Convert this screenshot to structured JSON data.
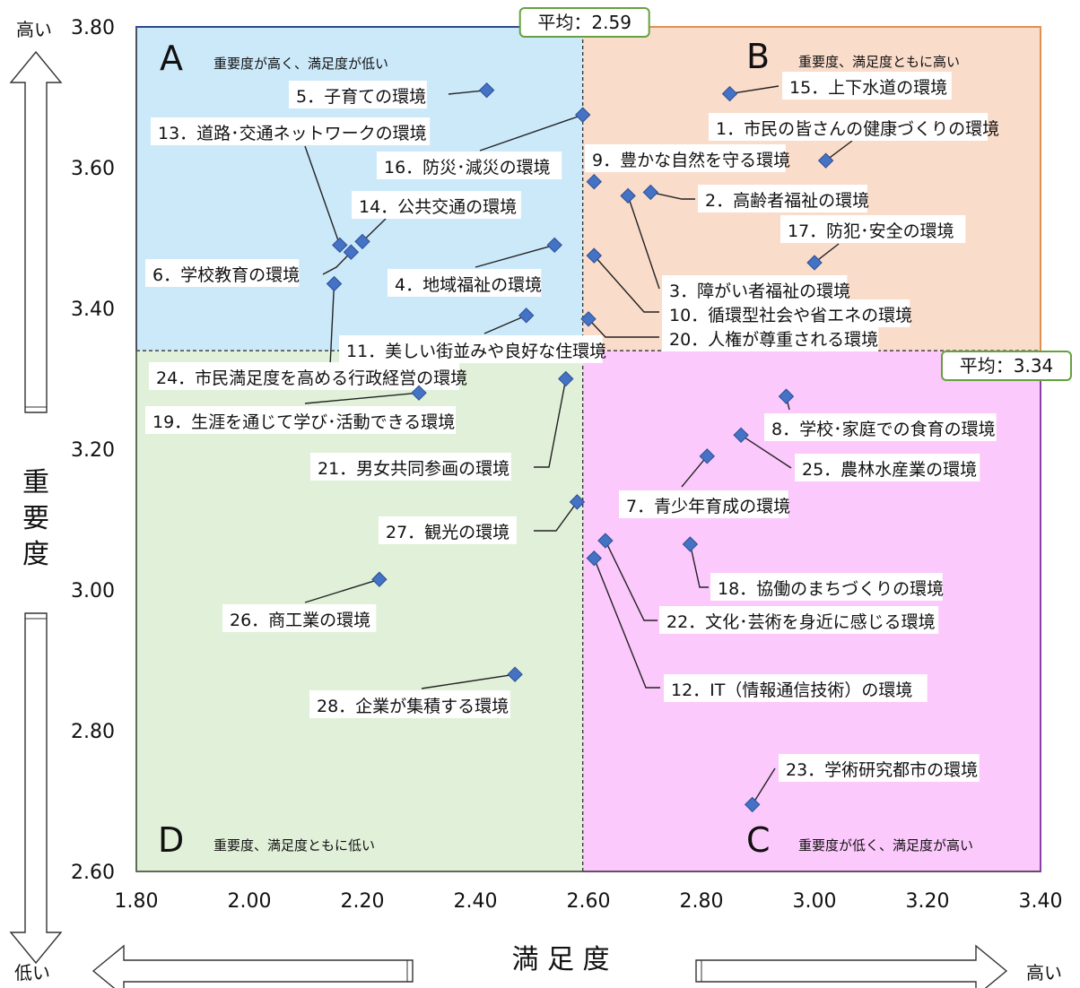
{
  "chart_data": {
    "type": "scatter",
    "x_axis": {
      "label": "満 足 度",
      "min": 1.8,
      "max": 3.4,
      "ticks": [
        "1.80",
        "2.00",
        "2.20",
        "2.40",
        "2.60",
        "2.80",
        "3.00",
        "3.20",
        "3.40"
      ],
      "low_label": "低い",
      "high_label": "高い"
    },
    "y_axis": {
      "label": [
        "重",
        "要",
        "度"
      ],
      "min": 2.6,
      "max": 3.8,
      "ticks": [
        "2.60",
        "2.80",
        "3.00",
        "3.20",
        "3.40",
        "3.60",
        "3.80"
      ],
      "low_label": "低い",
      "high_label": "高い"
    },
    "averages": {
      "x": 2.59,
      "x_label": "平均：2.59",
      "y": 3.34,
      "y_label": "平均：3.34"
    },
    "quadrants": [
      {
        "id": "A",
        "letter": "A",
        "desc": "重要度が高く、満足度が低い",
        "color": "#cce9fa",
        "border": "#2b4a8c"
      },
      {
        "id": "B",
        "letter": "B",
        "desc": "重要度、満足度ともに高い",
        "color": "#fadccb",
        "border": "#e09050"
      },
      {
        "id": "C",
        "letter": "C",
        "desc": "重要度が低く、満足度が高い",
        "color": "#fcc9fc",
        "border": "#8a3fa8"
      },
      {
        "id": "D",
        "letter": "D",
        "desc": "重要度、満足度ともに低い",
        "color": "#e1f0d9",
        "border": "#7ab55c"
      }
    ],
    "marker_color": "#4472c4",
    "points": [
      {
        "label": "1．市民の皆さんの健康づくりの環境",
        "x": 3.02,
        "y": 3.61
      },
      {
        "label": "2．高齢者福祉の環境",
        "x": 2.71,
        "y": 3.565
      },
      {
        "label": "3．障がい者福祉の環境",
        "x": 2.61,
        "y": 3.58
      },
      {
        "label": "4．地域福祉の環境",
        "x": 2.54,
        "y": 3.49
      },
      {
        "label": "5．子育ての環境",
        "x": 2.42,
        "y": 3.71
      },
      {
        "label": "6．学校教育の環境",
        "x": 2.18,
        "y": 3.48
      },
      {
        "label": "7．青少年育成の環境",
        "x": 2.81,
        "y": 3.19
      },
      {
        "label": "8．学校･家庭での食育の環境",
        "x": 2.95,
        "y": 3.275
      },
      {
        "label": "9．豊かな自然を守る環境",
        "x": 2.67,
        "y": 3.56
      },
      {
        "label": "10．循環型社会や省エネの環境",
        "x": 2.61,
        "y": 3.475
      },
      {
        "label": "11．美しい街並みや良好な住環境",
        "x": 2.49,
        "y": 3.39
      },
      {
        "label": "12．IT（情報通信技術）の環境",
        "x": 2.61,
        "y": 3.045
      },
      {
        "label": "13．道路･交通ネットワークの環境",
        "x": 2.16,
        "y": 3.49
      },
      {
        "label": "14．公共交通の環境",
        "x": 2.2,
        "y": 3.495
      },
      {
        "label": "15．上下水道の環境",
        "x": 2.85,
        "y": 3.705
      },
      {
        "label": "16．防災･減災の環境",
        "x": 2.59,
        "y": 3.675
      },
      {
        "label": "17．防犯･安全の環境",
        "x": 3.0,
        "y": 3.465
      },
      {
        "label": "18．協働のまちづくりの環境",
        "x": 2.78,
        "y": 3.065
      },
      {
        "label": "19．生涯を通じて学び･活動できる環境",
        "x": 2.3,
        "y": 3.28
      },
      {
        "label": "20．人権が尊重される環境",
        "x": 2.6,
        "y": 3.385
      },
      {
        "label": "21．男女共同参画の環境",
        "x": 2.56,
        "y": 3.3
      },
      {
        "label": "22．文化･芸術を身近に感じる環境",
        "x": 2.63,
        "y": 3.07
      },
      {
        "label": "23．学術研究都市の環境",
        "x": 2.89,
        "y": 2.695
      },
      {
        "label": "24．市民満足度を高める行政経営の環境",
        "x": 2.15,
        "y": 3.435
      },
      {
        "label": "25．農林水産業の環境",
        "x": 2.87,
        "y": 3.22
      },
      {
        "label": "26．商工業の環境",
        "x": 2.23,
        "y": 3.015
      },
      {
        "label": "27．観光の環境",
        "x": 2.58,
        "y": 3.125
      },
      {
        "label": "28．企業が集積する環境",
        "x": 2.47,
        "y": 2.88
      }
    ]
  }
}
